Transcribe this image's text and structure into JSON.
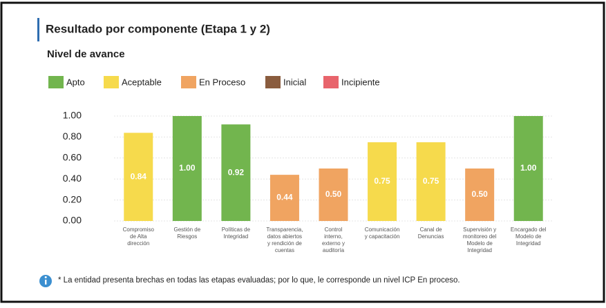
{
  "chart_data": {
    "type": "bar",
    "title": "Resultado por componente (Etapa 1 y 2)",
    "subtitle": "Nivel de avance",
    "legend": [
      {
        "name": "Apto",
        "color": "#72b54e"
      },
      {
        "name": "Aceptable",
        "color": "#f6da4c"
      },
      {
        "name": "En Proceso",
        "color": "#f0a461"
      },
      {
        "name": "Inicial",
        "color": "#8a5c3e"
      },
      {
        "name": "Incipiente",
        "color": "#e8646c"
      }
    ],
    "categories": [
      [
        "Compromiso",
        "de Alta",
        "dirección"
      ],
      [
        "Gestión de",
        "Riesgos"
      ],
      [
        "Políticas de",
        "Integridad"
      ],
      [
        "Transparencia,",
        "datos abiertos",
        "y rendición de",
        "cuentas"
      ],
      [
        "Control",
        "interno,",
        "externo y",
        "auditoría"
      ],
      [
        "Comunicación",
        "y capacitación"
      ],
      [
        "Canal de",
        "Denuncias"
      ],
      [
        "Supervisión y",
        "monitoreo del",
        "Modelo de",
        "Integridad"
      ],
      [
        "Encargado del",
        "Modelo de",
        "Integridad"
      ]
    ],
    "values": [
      0.84,
      1.0,
      0.92,
      0.44,
      0.5,
      0.75,
      0.75,
      0.5,
      1.0
    ],
    "value_labels": [
      "0.84",
      "1.00",
      "0.92",
      "0.44",
      "0.50",
      "0.75",
      "0.75",
      "0.50",
      "1.00"
    ],
    "colors": [
      "#f6da4c",
      "#72b54e",
      "#72b54e",
      "#f0a461",
      "#f0a461",
      "#f6da4c",
      "#f6da4c",
      "#f0a461",
      "#72b54e"
    ],
    "ylim": [
      0,
      1
    ],
    "yticks": [
      {
        "value": 0,
        "label": "0.00"
      },
      {
        "value": 0.2,
        "label": "0.20"
      },
      {
        "value": 0.4,
        "label": "0.40"
      },
      {
        "value": 0.6,
        "label": "0.60"
      },
      {
        "value": 0.8,
        "label": "0.80"
      },
      {
        "value": 1,
        "label": "1.00"
      }
    ],
    "grid": true,
    "footnote": "* La entidad presenta brechas en todas las etapas evaluadas; por lo que, le corresponde un nivel ICP En proceso."
  }
}
